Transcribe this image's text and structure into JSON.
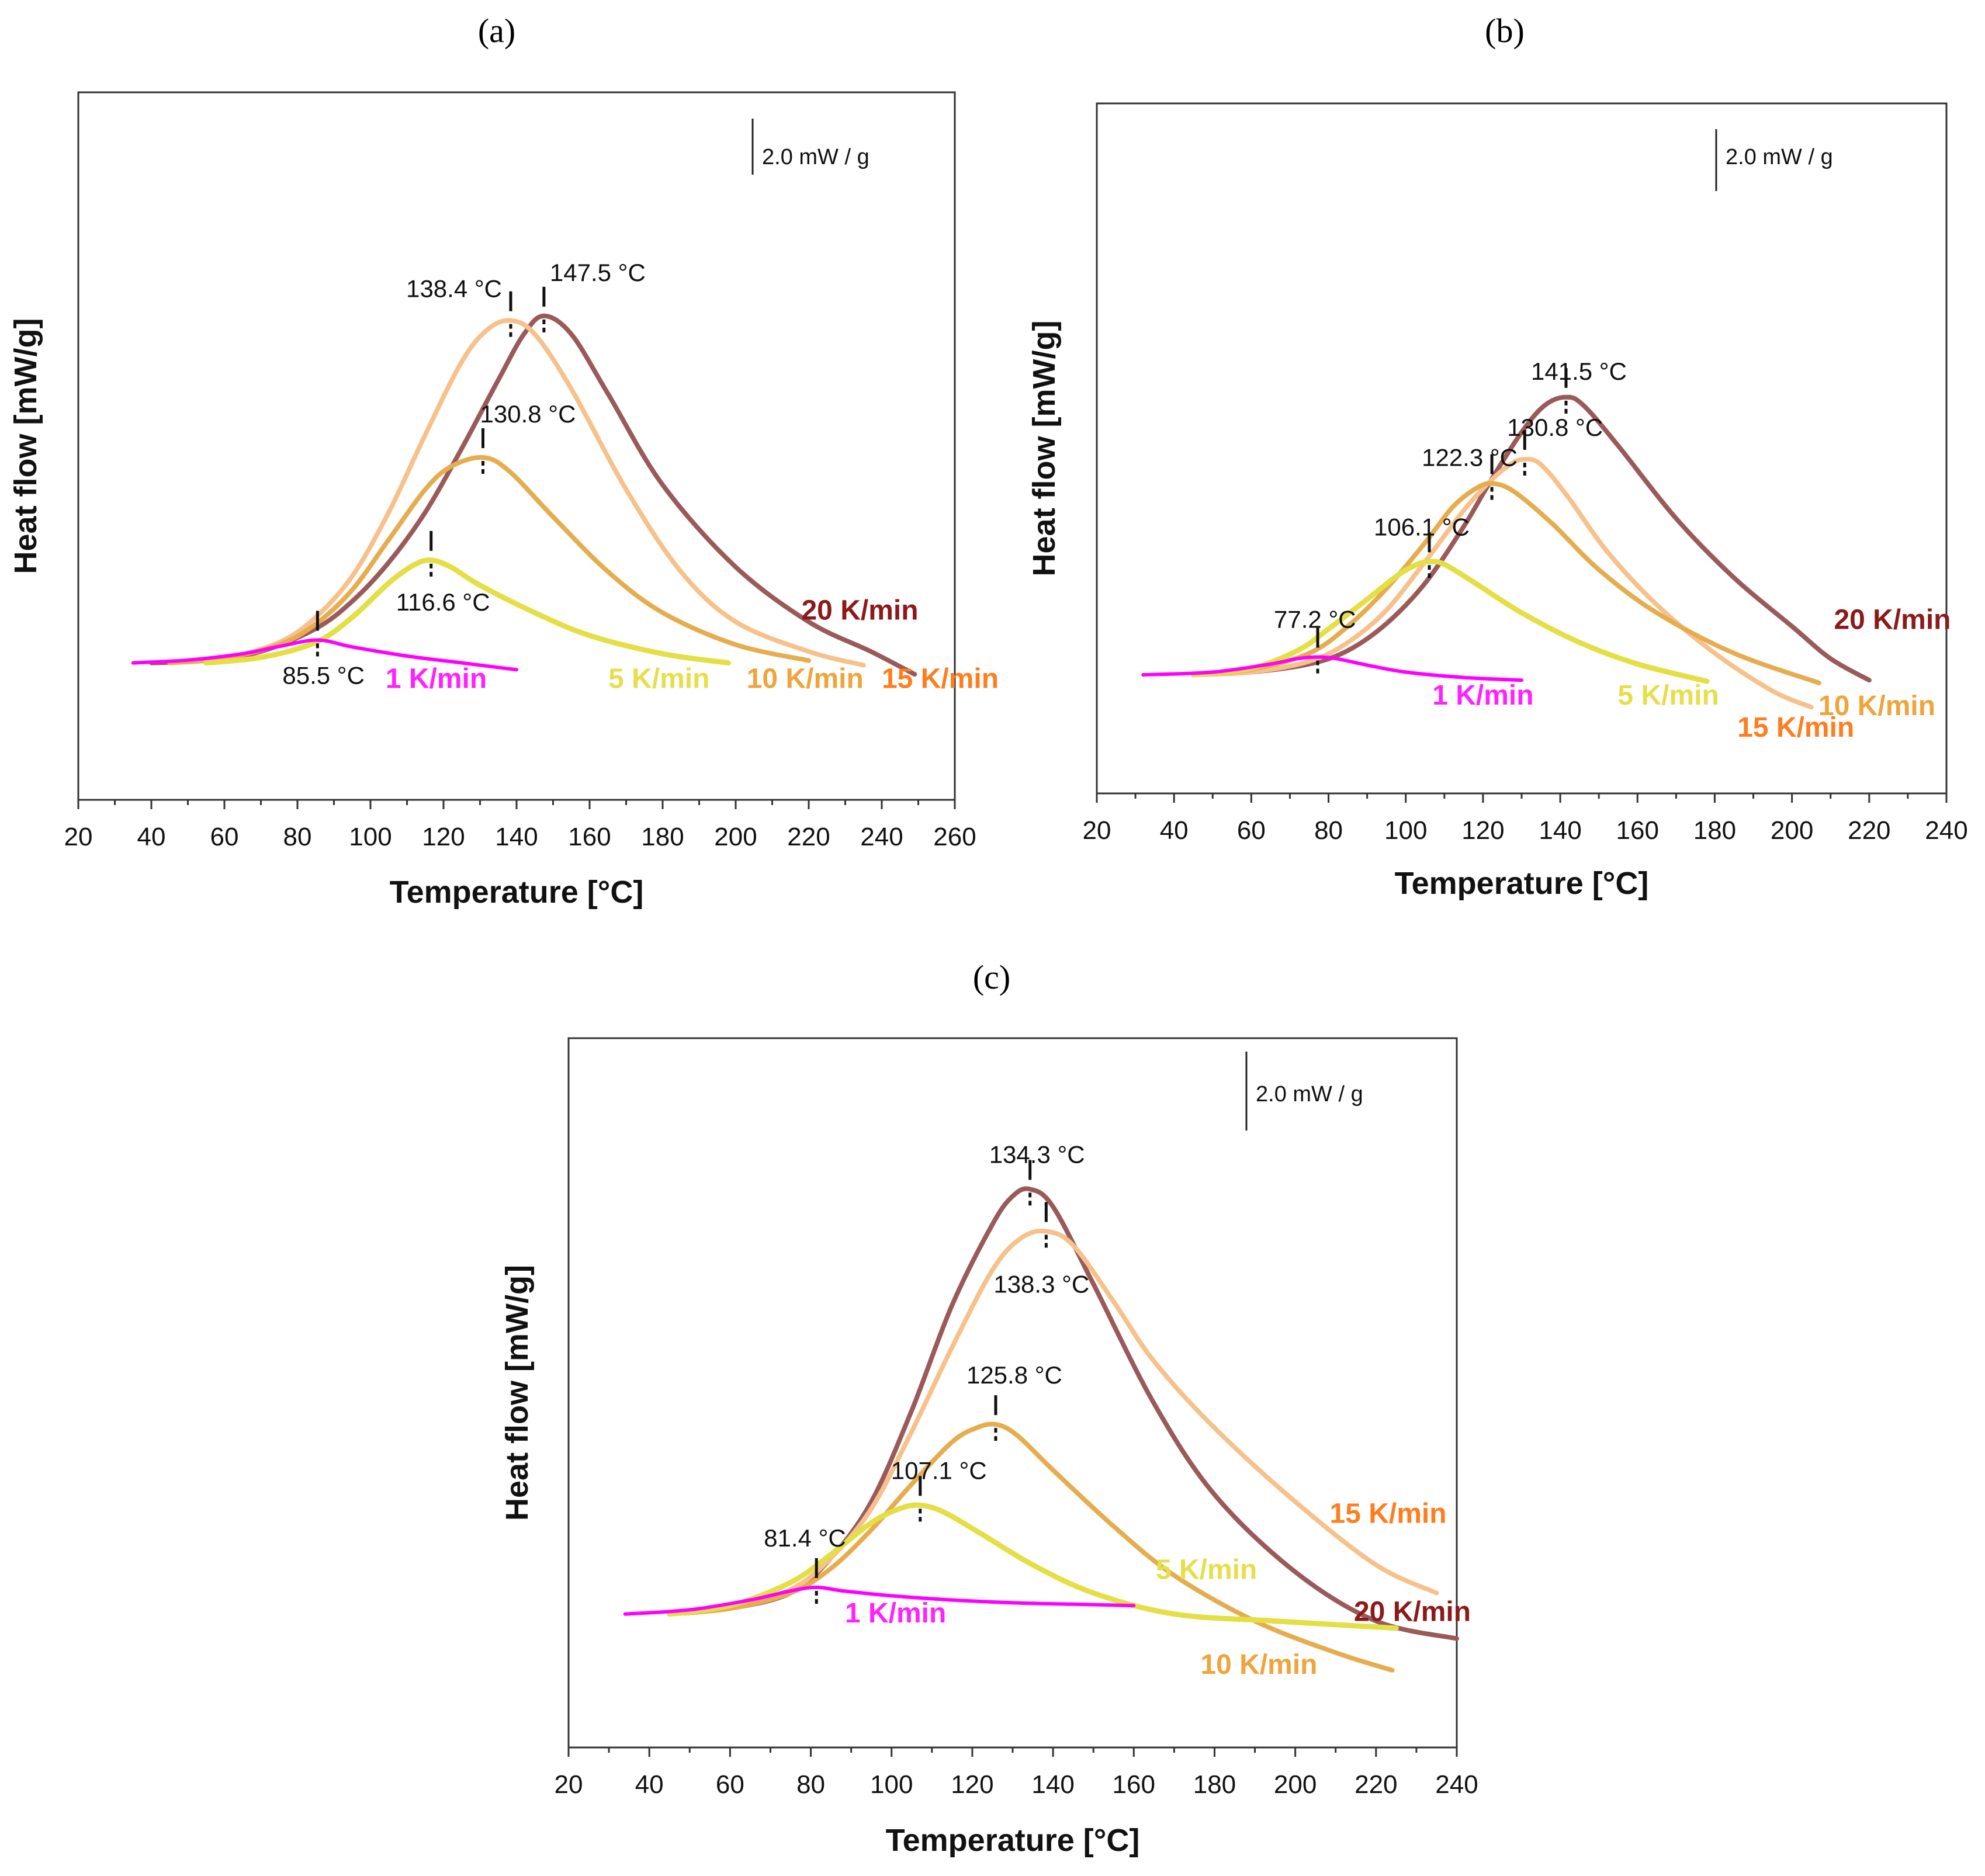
{
  "colors": {
    "1 K/min": "#ff00ff",
    "5 K/min": "#e3df45",
    "10 K/min": "#e6ad4f",
    "15 K/min": "#f7c18c",
    "20 K/min": "#9b5a5a"
  },
  "label_colors": {
    "1 K/min": "#ff22ff",
    "5 K/min": "#e6df4c",
    "10 K/min": "#f0a43c",
    "15 K/min": "#ff7d1e",
    "20 K/min": "#8b1a1a"
  },
  "chart_data": [
    {
      "panel": "(a)",
      "type": "line",
      "xlabel": "Temperature [°C]",
      "ylabel": "Heat flow [mW/g]",
      "xlim": [
        20,
        260
      ],
      "xticks": [
        20,
        40,
        60,
        80,
        100,
        120,
        140,
        160,
        180,
        200,
        220,
        240,
        260
      ],
      "ylim": [
        -3,
        12.5
      ],
      "scale_bar": "2.0 mW / g",
      "series": [
        {
          "name": "1 K/min",
          "x": [
            35,
            50,
            65,
            75,
            85.5,
            95,
            110,
            125,
            140
          ],
          "y": [
            0,
            0.06,
            0.2,
            0.36,
            0.5,
            0.35,
            0.15,
            0.0,
            -0.15
          ]
        },
        {
          "name": "5 K/min",
          "x": [
            55,
            70,
            85,
            95,
            105,
            112,
            116.6,
            122,
            130,
            145,
            160,
            180,
            198
          ],
          "y": [
            0,
            0.12,
            0.45,
            1.0,
            1.75,
            2.15,
            2.25,
            2.1,
            1.7,
            1.1,
            0.6,
            0.2,
            0.0
          ]
        },
        {
          "name": "10 K/min",
          "x": [
            45,
            60,
            75,
            85,
            95,
            105,
            115,
            122,
            130.8,
            138,
            150,
            165,
            180,
            200,
            220
          ],
          "y": [
            0,
            0.1,
            0.4,
            0.85,
            1.6,
            2.7,
            3.8,
            4.3,
            4.5,
            4.2,
            3.2,
            2.0,
            1.1,
            0.4,
            0.05
          ]
        },
        {
          "name": "15 K/min",
          "x": [
            45,
            60,
            75,
            85,
            95,
            105,
            115,
            125,
            132,
            138.4,
            145,
            155,
            170,
            185,
            200,
            220,
            235
          ],
          "y": [
            0,
            0.1,
            0.45,
            1.0,
            1.9,
            3.3,
            5.0,
            6.6,
            7.3,
            7.5,
            7.2,
            6.0,
            3.8,
            2.0,
            0.9,
            0.25,
            -0.05
          ]
        },
        {
          "name": "20 K/min",
          "x": [
            40,
            55,
            70,
            85,
            95,
            105,
            115,
            125,
            135,
            142,
            147.5,
            155,
            165,
            180,
            200,
            220,
            237,
            249
          ],
          "y": [
            0,
            0.05,
            0.25,
            0.75,
            1.35,
            2.2,
            3.3,
            4.7,
            6.2,
            7.2,
            7.6,
            7.2,
            5.9,
            3.9,
            2.1,
            0.9,
            0.25,
            -0.25
          ]
        }
      ],
      "annotations": [
        {
          "text": "147.5 °C",
          "x": 147.5,
          "y": 7.6
        },
        {
          "text": "138.4 °C",
          "x": 138.4,
          "y": 7.5
        },
        {
          "text": "130.8 °C",
          "x": 130.8,
          "y": 4.5
        },
        {
          "text": "116.6 °C",
          "x": 116.6,
          "y": 2.25
        },
        {
          "text": "85.5 °C",
          "x": 85.5,
          "y": 0.5
        }
      ],
      "rate_labels": [
        {
          "text": "20 K/min",
          "x": 234,
          "y": 0.95
        },
        {
          "text": "1 K/min",
          "x": 118,
          "y": -0.55
        },
        {
          "text": "5 K/min",
          "x": 179,
          "y": -0.55
        },
        {
          "text": "10 K/min",
          "x": 219,
          "y": -0.55
        },
        {
          "text": "15 K/min",
          "x": 256,
          "y": -0.55
        }
      ]
    },
    {
      "panel": "(b)",
      "type": "line",
      "xlabel": "Temperature [°C]",
      "ylabel": "Heat flow [mW/g]",
      "xlim": [
        20,
        240
      ],
      "xticks": [
        20,
        40,
        60,
        80,
        100,
        120,
        140,
        160,
        180,
        200,
        220,
        240
      ],
      "ylim": [
        -2.2,
        10.6
      ],
      "scale_bar": "2.0 mW / g",
      "series": [
        {
          "name": "1 K/min",
          "x": [
            32,
            50,
            65,
            72,
            77.2,
            82,
            90,
            100,
            115,
            130
          ],
          "y": [
            0,
            0.05,
            0.2,
            0.3,
            0.33,
            0.3,
            0.18,
            0.05,
            -0.05,
            -0.1
          ]
        },
        {
          "name": "5 K/min",
          "x": [
            45,
            60,
            72,
            80,
            90,
            98,
            103,
            106.1,
            110,
            118,
            130,
            145,
            160,
            178
          ],
          "y": [
            0,
            0.12,
            0.45,
            0.85,
            1.4,
            1.85,
            2.05,
            2.1,
            2.05,
            1.7,
            1.15,
            0.6,
            0.2,
            -0.12
          ]
        },
        {
          "name": "10 K/min",
          "x": [
            45,
            60,
            75,
            85,
            95,
            105,
            112,
            118,
            122.3,
            128,
            138,
            150,
            165,
            185,
            207
          ],
          "y": [
            0,
            0.1,
            0.4,
            0.9,
            1.6,
            2.45,
            3.1,
            3.45,
            3.55,
            3.4,
            2.8,
            1.95,
            1.15,
            0.4,
            -0.15
          ]
        },
        {
          "name": "15 K/min",
          "x": [
            45,
            60,
            75,
            85,
            95,
            105,
            115,
            122,
            127,
            130.8,
            135,
            142,
            152,
            165,
            180,
            195,
            205
          ],
          "y": [
            0,
            0.05,
            0.25,
            0.6,
            1.2,
            2.1,
            3.05,
            3.6,
            3.9,
            4.0,
            3.9,
            3.3,
            2.3,
            1.3,
            0.4,
            -0.3,
            -0.6
          ]
        },
        {
          "name": "20 K/min",
          "x": [
            45,
            60,
            75,
            85,
            95,
            105,
            115,
            122,
            130,
            136,
            141.5,
            146,
            155,
            170,
            185,
            200,
            210,
            220
          ],
          "y": [
            0,
            0.05,
            0.2,
            0.45,
            0.95,
            1.7,
            2.75,
            3.6,
            4.5,
            5.0,
            5.15,
            5.0,
            4.25,
            2.9,
            1.8,
            0.9,
            0.3,
            -0.1
          ]
        }
      ],
      "annotations": [
        {
          "text": "141.5 °C",
          "x": 141.5,
          "y": 5.15
        },
        {
          "text": "130.8 °C",
          "x": 130.8,
          "y": 4.0
        },
        {
          "text": "122.3 °C",
          "x": 122.3,
          "y": 3.55
        },
        {
          "text": "106.1 °C",
          "x": 106.1,
          "y": 2.1
        },
        {
          "text": "77.2 °C",
          "x": 77.2,
          "y": 0.33
        }
      ],
      "rate_labels": [
        {
          "text": "20 K/min",
          "x": 226,
          "y": 0.85
        },
        {
          "text": "1 K/min",
          "x": 120,
          "y": -0.55
        },
        {
          "text": "5 K/min",
          "x": 168,
          "y": -0.55
        },
        {
          "text": "10 K/min",
          "x": 222,
          "y": -0.75
        },
        {
          "text": "15 K/min",
          "x": 201,
          "y": -1.15
        }
      ]
    },
    {
      "panel": "(c)",
      "type": "line",
      "xlabel": "Temperature [°C]",
      "ylabel": "Heat flow [mW/g]",
      "xlim": [
        20,
        240
      ],
      "xticks": [
        20,
        40,
        60,
        80,
        100,
        120,
        140,
        160,
        180,
        200,
        220,
        240
      ],
      "ylim": [
        -1.9,
        8.2
      ],
      "scale_bar": "2.0 mW / g",
      "series": [
        {
          "name": "1 K/min",
          "x": [
            34,
            50,
            65,
            75,
            81.4,
            88,
            100,
            115,
            130,
            145,
            160
          ],
          "y": [
            0,
            0.06,
            0.2,
            0.33,
            0.38,
            0.33,
            0.26,
            0.2,
            0.16,
            0.14,
            0.12
          ]
        },
        {
          "name": "5 K/min",
          "x": [
            45,
            60,
            75,
            85,
            95,
            102,
            107.1,
            113,
            122,
            135,
            150,
            170,
            195,
            225
          ],
          "y": [
            0,
            0.12,
            0.45,
            0.85,
            1.3,
            1.5,
            1.55,
            1.45,
            1.15,
            0.7,
            0.3,
            0.0,
            -0.1,
            -0.2
          ]
        },
        {
          "name": "10 K/min",
          "x": [
            45,
            60,
            75,
            85,
            95,
            105,
            115,
            121,
            125.8,
            131,
            140,
            155,
            170,
            190,
            210,
            224
          ],
          "y": [
            0,
            0.08,
            0.3,
            0.65,
            1.2,
            1.85,
            2.45,
            2.65,
            2.7,
            2.55,
            2.05,
            1.25,
            0.55,
            -0.1,
            -0.55,
            -0.8
          ]
        },
        {
          "name": "15 K/min",
          "x": [
            45,
            60,
            75,
            85,
            95,
            105,
            115,
            125,
            132,
            138.3,
            145,
            155,
            165,
            180,
            200,
            220,
            235
          ],
          "y": [
            0,
            0.1,
            0.35,
            0.8,
            1.5,
            2.6,
            3.8,
            4.9,
            5.35,
            5.45,
            5.25,
            4.45,
            3.6,
            2.65,
            1.6,
            0.7,
            0.3
          ]
        },
        {
          "name": "20 K/min",
          "x": [
            45,
            60,
            75,
            85,
            95,
            105,
            115,
            125,
            130,
            134.3,
            140,
            150,
            165,
            180,
            200,
            220,
            240
          ],
          "y": [
            0,
            0.08,
            0.3,
            0.8,
            1.6,
            2.9,
            4.4,
            5.55,
            5.95,
            6.05,
            5.8,
            4.7,
            3.0,
            1.7,
            0.6,
            -0.1,
            -0.35
          ]
        }
      ],
      "annotations": [
        {
          "text": "134.3 °C",
          "x": 134.3,
          "y": 6.05
        },
        {
          "text": "138.3 °C",
          "x": 138.3,
          "y": 5.45
        },
        {
          "text": "125.8 °C",
          "x": 125.8,
          "y": 2.7
        },
        {
          "text": "107.1 °C",
          "x": 107.1,
          "y": 1.55
        },
        {
          "text": "81.4 °C",
          "x": 81.4,
          "y": 0.38
        }
      ],
      "rate_labels": [
        {
          "text": "15 K/min",
          "x": 223,
          "y": 1.3
        },
        {
          "text": "5 K/min",
          "x": 178,
          "y": 0.5
        },
        {
          "text": "20 K/min",
          "x": 229,
          "y": -0.1
        },
        {
          "text": "1 K/min",
          "x": 101,
          "y": -0.12
        },
        {
          "text": "10 K/min",
          "x": 191,
          "y": -0.85
        }
      ]
    }
  ]
}
